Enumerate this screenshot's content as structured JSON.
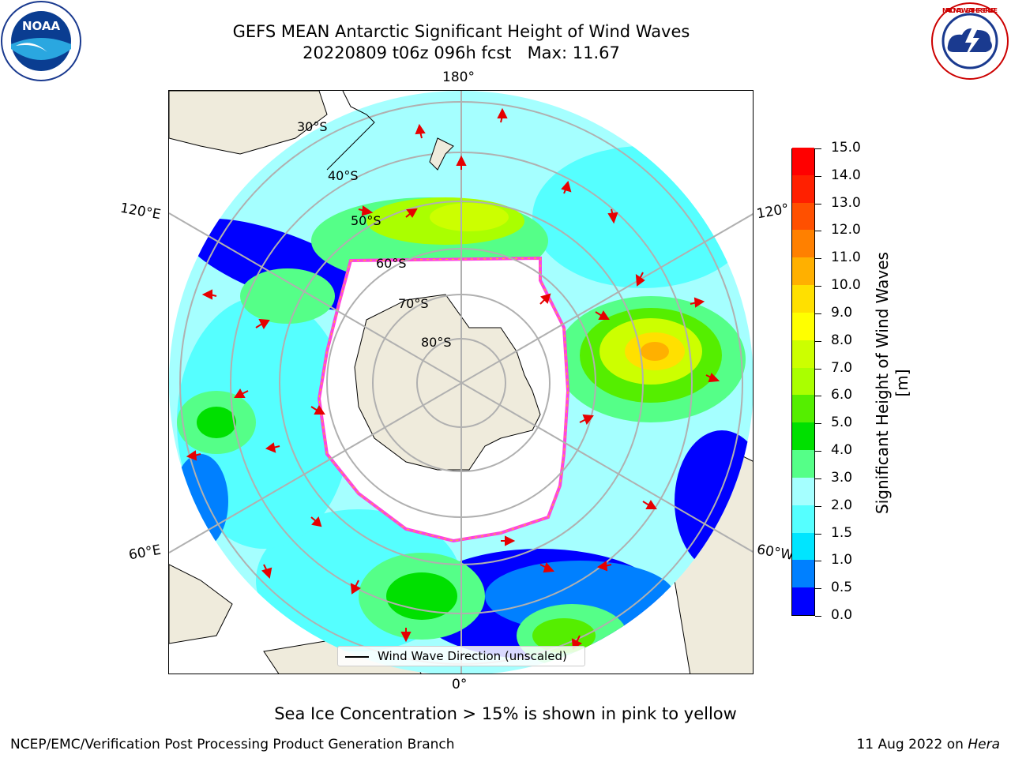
{
  "header": {
    "title_line1": "GEFS MEAN Antarctic Significant Height of Wind Waves",
    "title_line2": "20220809 t06z 096h fcst   Max: 11.67"
  },
  "map": {
    "lon_labels": {
      "top": "180°",
      "bottom": "0°",
      "left_upper": "120°E",
      "left_lower": "60°E",
      "right_upper": "120°",
      "right_lower": "60°W"
    },
    "lat_labels": [
      "30°S",
      "40°S",
      "50°S",
      "60°S",
      "70°S",
      "80°S"
    ],
    "legend_label": "Wind Wave Direction (unscaled)",
    "colors": {
      "land": "#efebdc",
      "ice_edge": "#ff44dd",
      "arrow": "#e60000",
      "grid": "#b0b0b0"
    }
  },
  "colorbar": {
    "title": "Significant Height of Wind Waves [m]",
    "ticks": [
      "0.0",
      "0.5",
      "1.0",
      "1.5",
      "2.0",
      "3.0",
      "4.0",
      "5.0",
      "6.0",
      "7.0",
      "8.0",
      "9.0",
      "10.0",
      "11.0",
      "12.0",
      "13.0",
      "14.0",
      "15.0"
    ],
    "colors": [
      "#0000ff",
      "#0080ff",
      "#00e5ff",
      "#55ffff",
      "#a5ffff",
      "#55ff88",
      "#00e000",
      "#55ee00",
      "#aaff00",
      "#ccff00",
      "#ffff00",
      "#ffe000",
      "#ffb000",
      "#ff8000",
      "#ff5000",
      "#ff2000",
      "#ff0000"
    ]
  },
  "footer": {
    "note": "Sea Ice Concentration > 15% is shown in pink to yellow",
    "branch": "NCEP/EMC/Verification Post Processing Product Generation Branch",
    "date": "11 Aug 2022 on",
    "host": "Hera"
  },
  "logos": {
    "noaa": "NOAA",
    "nws": "NATIONAL WEATHER SERVICE"
  }
}
